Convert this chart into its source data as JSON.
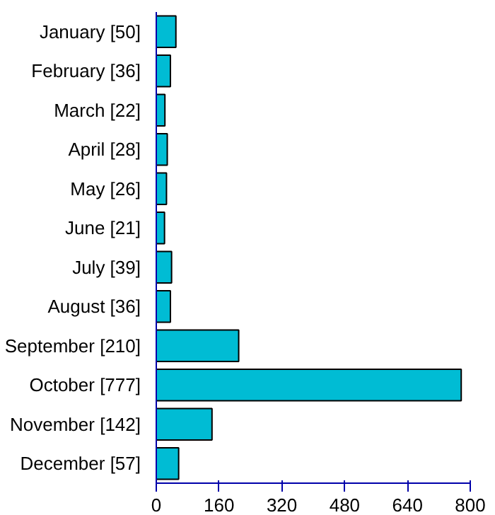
{
  "chart_data": {
    "type": "bar",
    "orientation": "horizontal",
    "categories": [
      "January [50]",
      "February [36]",
      "March [22]",
      "April [28]",
      "May [26]",
      "June [21]",
      "July [39]",
      "August [36]",
      "September [210]",
      "October [777]",
      "November [142]",
      "December [57]"
    ],
    "values": [
      50,
      36,
      22,
      28,
      26,
      21,
      39,
      36,
      210,
      777,
      142,
      57
    ],
    "color": "#00bcd4",
    "xlim": [
      0,
      800
    ],
    "xticks": [
      0,
      160,
      320,
      480,
      640,
      800
    ]
  }
}
